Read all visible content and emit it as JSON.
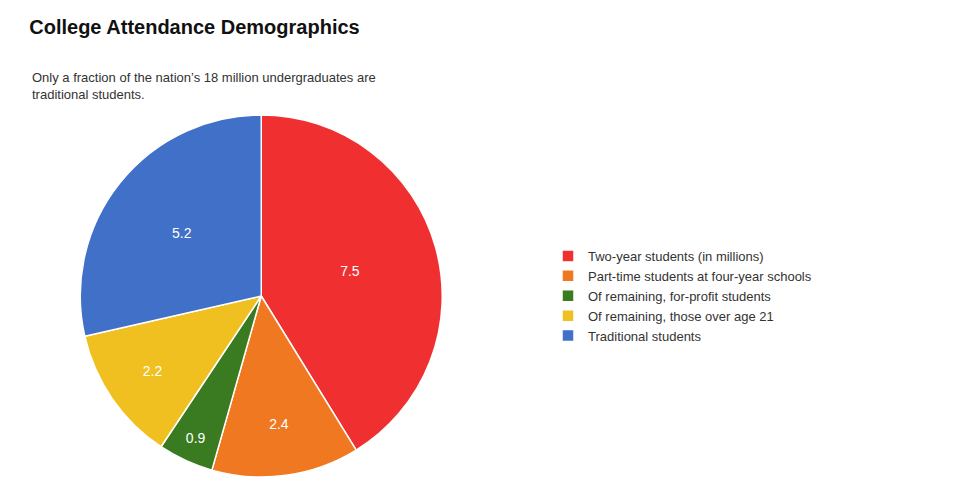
{
  "chart_data": {
    "type": "pie",
    "title": "College Attendance Demographics",
    "subtitle": "Only a fraction of the nation’s 18 million undergraduates are\ntraditional students.",
    "categories": [
      "Two-year students (in millions)",
      "Part-time students at four-year schools",
      "Of remaining, for-profit students",
      "Of remaining, those over age 21",
      "Traditional students"
    ],
    "values": [
      7.5,
      2.4,
      0.9,
      2.2,
      5.2
    ],
    "colors": [
      "#f03030",
      "#f07820",
      "#3a7a20",
      "#f0c020",
      "#4070c8"
    ],
    "data_labels": true,
    "legend": "right"
  }
}
